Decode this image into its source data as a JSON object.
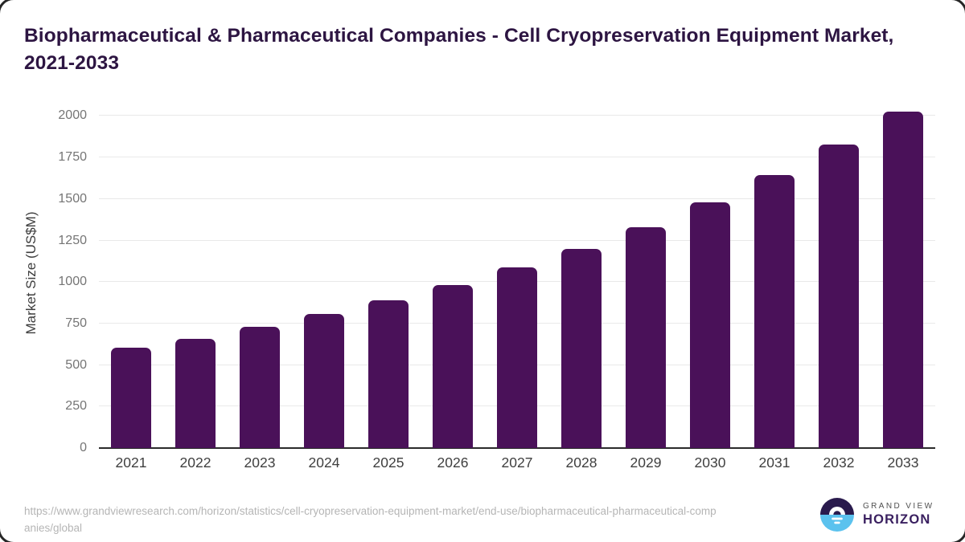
{
  "title": "Biopharmaceutical & Pharmaceutical Companies - Cell Cryopreservation Equipment Market, 2021-2033",
  "chart_data": {
    "type": "bar",
    "title": "Biopharmaceutical & Pharmaceutical Companies - Cell Cryopreservation Equipment Market, 2021-2033",
    "categories": [
      "2021",
      "2022",
      "2023",
      "2024",
      "2025",
      "2026",
      "2027",
      "2028",
      "2029",
      "2030",
      "2031",
      "2032",
      "2033"
    ],
    "values": [
      605,
      660,
      730,
      807,
      890,
      980,
      1087,
      1200,
      1332,
      1478,
      1643,
      1826,
      2028
    ],
    "xlabel": "",
    "ylabel": "Market Size (US$M)",
    "ylim": [
      0,
      2065
    ],
    "yticks": [
      0,
      250,
      500,
      750,
      1000,
      1250,
      1500,
      1750,
      2000
    ],
    "grid": "horizontal-only",
    "legend_position": "none",
    "bar_color": "#4a1159"
  },
  "footer": {
    "source_url": "https://www.grandviewresearch.com/horizon/statistics/cell-cryopreservation-equipment-market/end-use/biopharmaceutical-pharmaceutical-companies/global"
  },
  "logo": {
    "brand_line1": "GRAND VIEW",
    "brand_line2": "HORIZON",
    "icon": "horizon-sun-over-water-icon",
    "icon_top_color": "#2a1b4d",
    "icon_bottom_color": "#5bc2ee"
  },
  "colors": {
    "bar": "#4a1159",
    "title_text": "#2d1542",
    "y_tick_text": "#757575",
    "x_tick_text": "#3f3f3f",
    "axis_line": "#2b2b2b",
    "gridline": "#e9e9e9",
    "url_text": "#b5b5b5",
    "card_border": "#262626"
  }
}
